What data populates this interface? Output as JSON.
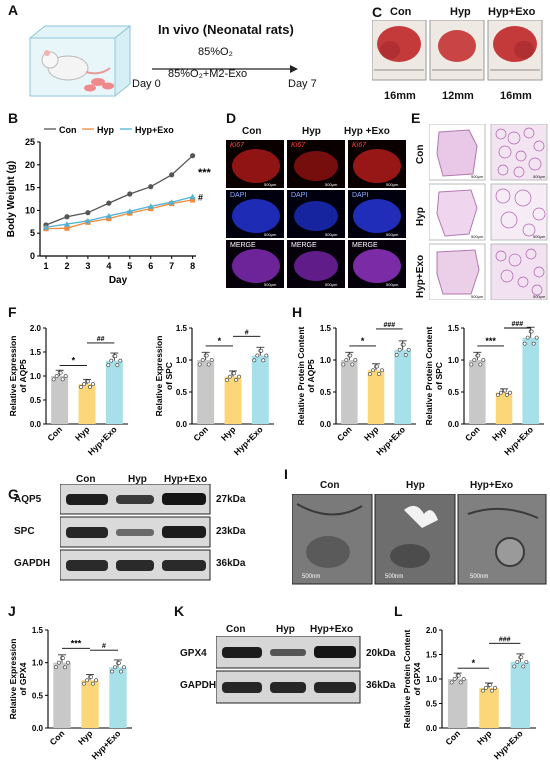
{
  "panels": [
    "A",
    "B",
    "C",
    "D",
    "E",
    "F",
    "G",
    "H",
    "I",
    "J",
    "K",
    "L"
  ],
  "A": {
    "title": "In vivo (Neonatal rats)",
    "cond1": "85%O₂",
    "cond2": "85%O₂+M2-Exo",
    "day0": "Day 0",
    "day7": "Day 7"
  },
  "C": {
    "groups": [
      "Con",
      "Hyp",
      "Hyp+Exo"
    ],
    "sizes": [
      "16mm",
      "12mm",
      "16mm"
    ]
  },
  "D": {
    "cols": [
      "Con",
      "Hyp",
      "Hyp +Exo"
    ],
    "rows": [
      "Ki67",
      "DAPI",
      "MERGE"
    ],
    "scale": "500μm"
  },
  "E": {
    "rows": [
      "Con",
      "Hyp",
      "Hyp+Exo"
    ],
    "scale": "500μm"
  },
  "G": {
    "header": [
      "Con",
      "Hyp",
      "Hyp+Exo"
    ],
    "proteins": [
      "AQP5",
      "SPC",
      "GAPDH"
    ],
    "kda": [
      "27kDa",
      "23kDa",
      "36kDa"
    ]
  },
  "I": {
    "cols": [
      "Con",
      "Hyp",
      "Hyp+Exo"
    ],
    "scale": "500nm"
  },
  "K": {
    "header": [
      "Con",
      "Hyp",
      "Hyp+Exo"
    ],
    "proteins": [
      "GPX4",
      "GAPDH"
    ],
    "kda": [
      "20kDa",
      "36kDa"
    ]
  },
  "colors": {
    "con": "#c8c8c8",
    "hyp": "#fbd77a",
    "exo": "#a8e0ea",
    "lineCon": "#555555",
    "lineHyp": "#f28a3c",
    "lineExo": "#4fb3d9"
  },
  "chart_data": [
    {
      "id": "B",
      "type": "line",
      "xlabel": "Day",
      "ylabel": "Body Weight (g)",
      "x": [
        1,
        2,
        3,
        4,
        5,
        6,
        7,
        8
      ],
      "ylim": [
        0,
        25
      ],
      "yticks": [
        0,
        5,
        10,
        15,
        20,
        25
      ],
      "series": [
        {
          "name": "Con",
          "values": [
            6.8,
            8.6,
            9.5,
            11.6,
            13.6,
            15.2,
            17.8,
            22.0
          ]
        },
        {
          "name": "Hyp",
          "values": [
            6.0,
            6.1,
            7.4,
            8.2,
            9.4,
            10.4,
            11.5,
            12.3
          ]
        },
        {
          "name": "Hyp+Exo",
          "values": [
            6.3,
            7.0,
            7.7,
            8.8,
            9.8,
            10.9,
            11.8,
            13.0
          ]
        }
      ],
      "annotations": [
        "***",
        "#"
      ]
    },
    {
      "id": "F1",
      "type": "bar",
      "ylabel": "Relative Expression of AQP5",
      "categories": [
        "Con",
        "Hyp",
        "Hyp+Exo"
      ],
      "values": [
        1.0,
        0.83,
        1.32
      ],
      "ylim": [
        0,
        2.0
      ],
      "yticks": [
        0,
        0.5,
        1.0,
        1.5,
        2.0
      ],
      "sig": [
        "*",
        "##"
      ]
    },
    {
      "id": "F2",
      "type": "bar",
      "ylabel": "Relative Expression of SPC",
      "categories": [
        "Con",
        "Hyp",
        "Hyp+Exo"
      ],
      "values": [
        1.0,
        0.74,
        1.07
      ],
      "ylim": [
        0,
        1.5
      ],
      "yticks": [
        0,
        0.5,
        1.0,
        1.5
      ],
      "sig": [
        "*",
        "#"
      ]
    },
    {
      "id": "H1",
      "type": "bar",
      "ylabel": "Relative Protein Content of AQP5",
      "categories": [
        "Con",
        "Hyp",
        "Hyp+Exo"
      ],
      "values": [
        1.0,
        0.84,
        1.16
      ],
      "ylim": [
        0,
        1.5
      ],
      "yticks": [
        0,
        0.5,
        1.0,
        1.5
      ],
      "sig": [
        "*",
        "###"
      ]
    },
    {
      "id": "H2",
      "type": "bar",
      "ylabel": "Relative Protein Content of SPC",
      "categories": [
        "Con",
        "Hyp",
        "Hyp+Exo"
      ],
      "values": [
        1.0,
        0.49,
        1.35
      ],
      "ylim": [
        0,
        1.5
      ],
      "yticks": [
        0,
        0.5,
        1.0,
        1.5
      ],
      "sig": [
        "***",
        "###"
      ]
    },
    {
      "id": "J",
      "type": "bar",
      "ylabel": "Relative Expression of GPX4",
      "categories": [
        "Con",
        "Hyp",
        "Hyp+Exo"
      ],
      "values": [
        1.0,
        0.73,
        0.93
      ],
      "ylim": [
        0,
        1.5
      ],
      "yticks": [
        0,
        0.5,
        1.0,
        1.5
      ],
      "sig": [
        "***",
        "#"
      ]
    },
    {
      "id": "L",
      "type": "bar",
      "ylabel": "Relative Protein Content of GPX4",
      "categories": [
        "Con",
        "Hyp",
        "Hyp+Exo"
      ],
      "values": [
        1.0,
        0.82,
        1.35
      ],
      "ylim": [
        0,
        2.0
      ],
      "yticks": [
        0,
        0.5,
        1.0,
        1.5,
        2.0
      ],
      "sig": [
        "*",
        "###"
      ]
    }
  ]
}
